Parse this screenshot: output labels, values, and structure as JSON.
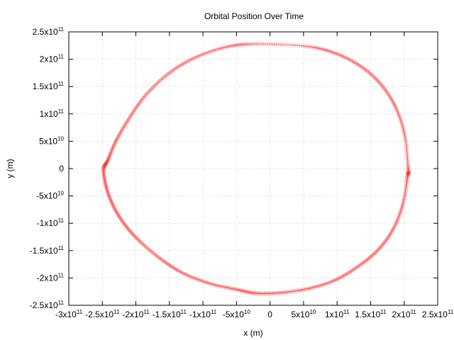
{
  "chart_data": {
    "type": "scatter",
    "title": "Orbital Position Over Time",
    "xlabel": "x (m)",
    "ylabel": "y (m)",
    "xlim": [
      -300000000000.0,
      250000000000.0
    ],
    "ylim": [
      -250000000000.0,
      250000000000.0
    ],
    "grid": true,
    "marker_color": "#ff3030",
    "x_ticks": [
      {
        "value": -300000000000.0,
        "mant": "-3x10",
        "exp": "11"
      },
      {
        "value": -250000000000.0,
        "mant": "-2.5x10",
        "exp": "11"
      },
      {
        "value": -200000000000.0,
        "mant": "-2x10",
        "exp": "11"
      },
      {
        "value": -150000000000.0,
        "mant": "-1.5x10",
        "exp": "11"
      },
      {
        "value": -100000000000.0,
        "mant": "-1x10",
        "exp": "11"
      },
      {
        "value": -50000000000.0,
        "mant": "-5x10",
        "exp": "10"
      },
      {
        "value": 0,
        "mant": "0",
        "exp": ""
      },
      {
        "value": 50000000000.0,
        "mant": "5x10",
        "exp": "10"
      },
      {
        "value": 100000000000.0,
        "mant": "1x10",
        "exp": "11"
      },
      {
        "value": 150000000000.0,
        "mant": "1.5x10",
        "exp": "11"
      },
      {
        "value": 200000000000.0,
        "mant": "2x10",
        "exp": "11"
      },
      {
        "value": 250000000000.0,
        "mant": "2.5x10",
        "exp": "11"
      }
    ],
    "y_ticks": [
      {
        "value": 250000000000.0,
        "mant": "2.5x10",
        "exp": "11"
      },
      {
        "value": 200000000000.0,
        "mant": "2x10",
        "exp": "11"
      },
      {
        "value": 150000000000.0,
        "mant": "1.5x10",
        "exp": "11"
      },
      {
        "value": 100000000000.0,
        "mant": "1x10",
        "exp": "11"
      },
      {
        "value": 50000000000.0,
        "mant": "5x10",
        "exp": "10"
      },
      {
        "value": 0,
        "mant": "0",
        "exp": ""
      },
      {
        "value": -50000000000.0,
        "mant": "-5x10",
        "exp": "10"
      },
      {
        "value": -100000000000.0,
        "mant": "-1x10",
        "exp": "11"
      },
      {
        "value": -150000000000.0,
        "mant": "-1.5x10",
        "exp": "11"
      },
      {
        "value": -200000000000.0,
        "mant": "-2x10",
        "exp": "11"
      },
      {
        "value": -250000000000.0,
        "mant": "-2.5x10",
        "exp": "11"
      }
    ],
    "series": [
      {
        "points": [
          [
            206000000000.0,
            0
          ],
          [
            201000000000.0,
            60000000000.0
          ],
          [
            187000000000.0,
            113000000000.0
          ],
          [
            164000000000.0,
            156000000000.0
          ],
          [
            133000000000.0,
            189000000000.0
          ],
          [
            95000000000.0,
            212000000000.0
          ],
          [
            52000000000.0,
            224000000000.0
          ],
          [
            -20000000000.0,
            228000000000.0
          ],
          [
            -63000000000.0,
            223000000000.0
          ],
          [
            -110000000000.0,
            204000000000.0
          ],
          [
            -150000000000.0,
            175000000000.0
          ],
          [
            -185000000000.0,
            135000000000.0
          ],
          [
            -210000000000.0,
            92000000000.0
          ],
          [
            -230000000000.0,
            50000000000.0
          ],
          [
            -242000000000.0,
            15000000000.0
          ],
          [
            -248000000000.0,
            0
          ],
          [
            -245000000000.0,
            -30000000000.0
          ],
          [
            -235000000000.0,
            -65000000000.0
          ],
          [
            -218000000000.0,
            -100000000000.0
          ],
          [
            -195000000000.0,
            -132000000000.0
          ],
          [
            -162000000000.0,
            -166000000000.0
          ],
          [
            -130000000000.0,
            -191000000000.0
          ],
          [
            -90000000000.0,
            -210000000000.0
          ],
          [
            -50000000000.0,
            -221000000000.0
          ],
          [
            -20000000000.0,
            -228000000000.0
          ],
          [
            15000000000.0,
            -227000000000.0
          ],
          [
            55000000000.0,
            -220000000000.0
          ],
          [
            95000000000.0,
            -205000000000.0
          ],
          [
            130000000000.0,
            -180000000000.0
          ],
          [
            160000000000.0,
            -150000000000.0
          ],
          [
            183000000000.0,
            -112000000000.0
          ],
          [
            198000000000.0,
            -65000000000.0
          ],
          [
            205000000000.0,
            -15000000000.0
          ]
        ]
      }
    ]
  }
}
